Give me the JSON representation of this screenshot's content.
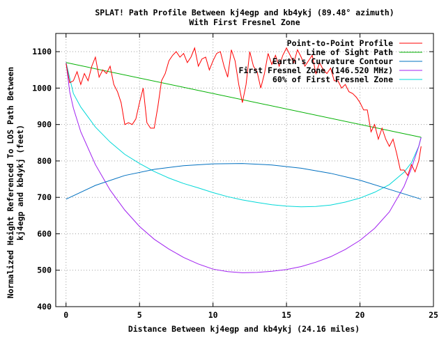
{
  "chart_data": {
    "type": "line",
    "title": "SPLAT! Path Profile Between kj4egp and kb4ykj (89.48° azimuth)",
    "subtitle": "With First Fresnel Zone",
    "xlabel": "Distance Between kj4egp and kb4ykj (24.16 miles)",
    "ylabel_line1": "Normalized Height Referenced To LOS Path Between",
    "ylabel_line2": "kj4egp and kb4ykj (feet)",
    "xlim": [
      -0.7,
      25
    ],
    "ylim": [
      400,
      1150
    ],
    "x_ticks": [
      0,
      5,
      10,
      15,
      20,
      25
    ],
    "y_ticks": [
      400,
      500,
      600,
      700,
      800,
      900,
      1000,
      1100
    ],
    "x_tick_labels": [
      "0",
      "5",
      "10",
      "15",
      "20",
      "25"
    ],
    "y_tick_labels": [
      "400",
      "500",
      "600",
      "700",
      "800",
      "900",
      "1000",
      "1100"
    ],
    "grid": true,
    "legend_position": "top-right",
    "series": [
      {
        "name": "Point-to-Point Profile",
        "color": "#ff0000",
        "x": [
          0,
          0.25,
          0.5,
          0.75,
          1,
          1.25,
          1.5,
          1.75,
          2,
          2.25,
          2.5,
          2.75,
          3,
          3.25,
          3.5,
          3.75,
          4,
          4.25,
          4.5,
          4.75,
          5,
          5.25,
          5.5,
          5.75,
          6,
          6.25,
          6.5,
          6.75,
          7,
          7.25,
          7.5,
          7.75,
          8,
          8.25,
          8.5,
          8.75,
          9,
          9.25,
          9.5,
          9.75,
          10,
          10.25,
          10.5,
          10.75,
          11,
          11.25,
          11.5,
          11.75,
          12,
          12.25,
          12.5,
          12.75,
          13,
          13.25,
          13.5,
          13.75,
          14,
          14.25,
          14.5,
          14.75,
          15,
          15.25,
          15.5,
          15.75,
          16,
          16.25,
          16.5,
          16.75,
          17,
          17.25,
          17.5,
          17.75,
          18,
          18.25,
          18.5,
          18.75,
          19,
          19.25,
          19.5,
          19.75,
          20,
          20.25,
          20.5,
          20.75,
          21,
          21.25,
          21.5,
          21.75,
          22,
          22.25,
          22.5,
          22.75,
          23,
          23.25,
          23.5,
          23.75,
          24,
          24.16
        ],
        "y": [
          1067,
          1015,
          1020,
          1045,
          1010,
          1040,
          1020,
          1060,
          1085,
          1030,
          1050,
          1040,
          1060,
          1010,
          990,
          960,
          900,
          905,
          900,
          915,
          960,
          1000,
          905,
          890,
          890,
          950,
          1020,
          1040,
          1075,
          1090,
          1100,
          1085,
          1095,
          1070,
          1085,
          1110,
          1060,
          1080,
          1085,
          1050,
          1075,
          1095,
          1100,
          1060,
          1030,
          1105,
          1075,
          1010,
          960,
          1010,
          1100,
          1060,
          1045,
          1000,
          1040,
          1095,
          1065,
          1090,
          1060,
          1090,
          1110,
          1090,
          1070,
          1105,
          1085,
          1060,
          1075,
          1090,
          1040,
          1070,
          1050,
          1040,
          1055,
          1020,
          1020,
          1000,
          1010,
          990,
          985,
          975,
          960,
          940,
          940,
          880,
          900,
          860,
          890,
          860,
          840,
          860,
          820,
          775,
          775,
          760,
          790,
          770,
          800,
          840
        ],
        "values": [
          1067,
          1015,
          1020,
          1045,
          1010,
          1040,
          1020,
          1060,
          1085,
          1030,
          1050,
          1040,
          1060,
          1010,
          990,
          960,
          900,
          905,
          900,
          915,
          960,
          1000,
          905,
          890,
          890,
          950,
          1020,
          1040,
          1075,
          1090,
          1100,
          1085,
          1095,
          1070,
          1085,
          1110,
          1060,
          1080,
          1085,
          1050,
          1075,
          1095,
          1100,
          1060,
          1030,
          1105,
          1075,
          1010,
          960,
          1010,
          1100,
          1060,
          1045,
          1000,
          1040,
          1095,
          1065,
          1090,
          1060,
          1090,
          1110,
          1090,
          1070,
          1105,
          1085,
          1060,
          1075,
          1090,
          1040,
          1070,
          1050,
          1040,
          1055,
          1020,
          1020,
          1000,
          1010,
          990,
          985,
          975,
          960,
          940,
          940,
          880,
          900,
          860,
          890,
          860,
          840,
          860,
          820,
          775,
          775,
          760,
          790,
          770,
          800,
          840
        ]
      },
      {
        "name": "Line of Sight Path",
        "color": "#00b000",
        "x": [
          0,
          24.16
        ],
        "y": [
          1070,
          865
        ],
        "values": [
          1070,
          865
        ]
      },
      {
        "name": "Earth's Curvature Contour",
        "color": "#0070c0",
        "x": [
          0,
          2,
          4,
          6,
          8,
          10,
          12,
          14,
          16,
          18,
          20,
          22,
          24.16
        ],
        "y": [
          695,
          733,
          760,
          777,
          787,
          792,
          793,
          789,
          780,
          766,
          747,
          722,
          695
        ],
        "values": [
          695,
          733,
          760,
          777,
          787,
          792,
          793,
          789,
          780,
          766,
          747,
          722,
          695
        ]
      },
      {
        "name": "First Fresnel Zone (146.520 MHz)",
        "color": "#a020f0",
        "x": [
          0,
          0.25,
          0.5,
          1,
          2,
          3,
          4,
          5,
          6,
          7,
          8,
          9,
          10,
          11,
          12,
          13,
          14,
          15,
          16,
          17,
          18,
          19,
          20,
          21,
          22,
          23,
          23.5,
          24,
          24.16
        ],
        "y": [
          1070,
          990,
          945,
          880,
          790,
          720,
          665,
          620,
          585,
          558,
          535,
          517,
          503,
          496,
          493,
          494,
          497,
          502,
          510,
          522,
          537,
          557,
          582,
          615,
          660,
          730,
          780,
          840,
          865
        ],
        "values": [
          1070,
          990,
          945,
          880,
          790,
          720,
          665,
          620,
          585,
          558,
          535,
          517,
          503,
          496,
          493,
          494,
          497,
          502,
          510,
          522,
          537,
          557,
          582,
          615,
          660,
          730,
          780,
          840,
          865
        ]
      },
      {
        "name": "60% of First Fresnel Zone",
        "color": "#00d8d8",
        "x": [
          0,
          0.5,
          1,
          2,
          3,
          4,
          5,
          6,
          7,
          8,
          9,
          10,
          11,
          12,
          13,
          14,
          15,
          16,
          17,
          18,
          19,
          20,
          21,
          22,
          23,
          23.5,
          24,
          24.16
        ],
        "y": [
          1070,
          985,
          948,
          893,
          852,
          818,
          793,
          771,
          753,
          738,
          726,
          713,
          702,
          693,
          686,
          680,
          676,
          674,
          675,
          679,
          687,
          698,
          714,
          735,
          769,
          795,
          840,
          865
        ],
        "values": [
          1070,
          985,
          948,
          893,
          852,
          818,
          793,
          771,
          753,
          738,
          726,
          713,
          702,
          693,
          686,
          680,
          676,
          674,
          675,
          679,
          687,
          698,
          714,
          735,
          769,
          795,
          840,
          865
        ]
      }
    ]
  }
}
